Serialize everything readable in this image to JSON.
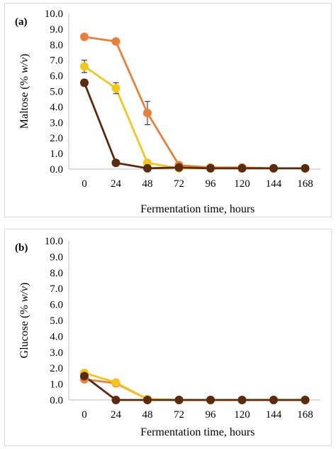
{
  "chart_data": [
    {
      "type": "line",
      "panel_label": "(a)",
      "ylabel": "Maltose (% w/v)",
      "xlabel": "Fermentation time, hours",
      "categories": [
        "0",
        "24",
        "48",
        "72",
        "96",
        "120",
        "144",
        "168"
      ],
      "ylim": [
        0,
        10
      ],
      "yticks": [
        "0.0",
        "1.0",
        "2.0",
        "3.0",
        "4.0",
        "5.0",
        "6.0",
        "7.0",
        "8.0",
        "9.0",
        "10.0"
      ],
      "grid": false,
      "legend": "none",
      "series": [
        {
          "color": "#E8803A",
          "values": [
            8.5,
            8.2,
            3.6,
            0.25,
            0.1,
            0.1,
            0.05,
            0.05
          ],
          "errors": [
            0,
            0,
            0.75,
            0,
            0,
            0,
            0,
            0
          ]
        },
        {
          "color": "#F5C518",
          "values": [
            6.6,
            5.2,
            0.4,
            0.05,
            0.05,
            0.05,
            0.05,
            0.05
          ],
          "errors": [
            0.4,
            0.35,
            0,
            0,
            0,
            0,
            0,
            0
          ]
        },
        {
          "color": "#5C2A0E",
          "values": [
            5.55,
            0.4,
            0.05,
            0.1,
            0.05,
            0.05,
            0.05,
            0.05
          ],
          "errors": [
            0.2,
            0,
            0,
            0,
            0,
            0,
            0,
            0
          ]
        }
      ]
    },
    {
      "type": "line",
      "panel_label": "(b)",
      "ylabel": "Glucose (% w/v)",
      "xlabel": "Fermentation time, hours",
      "categories": [
        "0",
        "24",
        "48",
        "72",
        "96",
        "120",
        "144",
        "168"
      ],
      "ylim": [
        0,
        10
      ],
      "yticks": [
        "0.0",
        "1.0",
        "2.0",
        "3.0",
        "4.0",
        "5.0",
        "6.0",
        "7.0",
        "8.0",
        "9.0",
        "10.0"
      ],
      "grid": false,
      "legend": "none",
      "series": [
        {
          "color": "#E8803A",
          "values": [
            1.3,
            1.05,
            0.05,
            0.0,
            0.0,
            0.0,
            0.0,
            0.0
          ],
          "errors": [
            0,
            0,
            0,
            0,
            0,
            0,
            0,
            0
          ]
        },
        {
          "color": "#F5C518",
          "values": [
            1.7,
            1.1,
            0.05,
            0.0,
            0.0,
            0.0,
            0.0,
            0.0
          ],
          "errors": [
            0,
            0,
            0,
            0,
            0,
            0,
            0,
            0
          ]
        },
        {
          "color": "#5C2A0E",
          "values": [
            1.5,
            0.0,
            0.0,
            0.0,
            0.0,
            0.0,
            0.0,
            0.0
          ],
          "errors": [
            0,
            0,
            0,
            0,
            0,
            0,
            0,
            0
          ]
        }
      ]
    }
  ]
}
